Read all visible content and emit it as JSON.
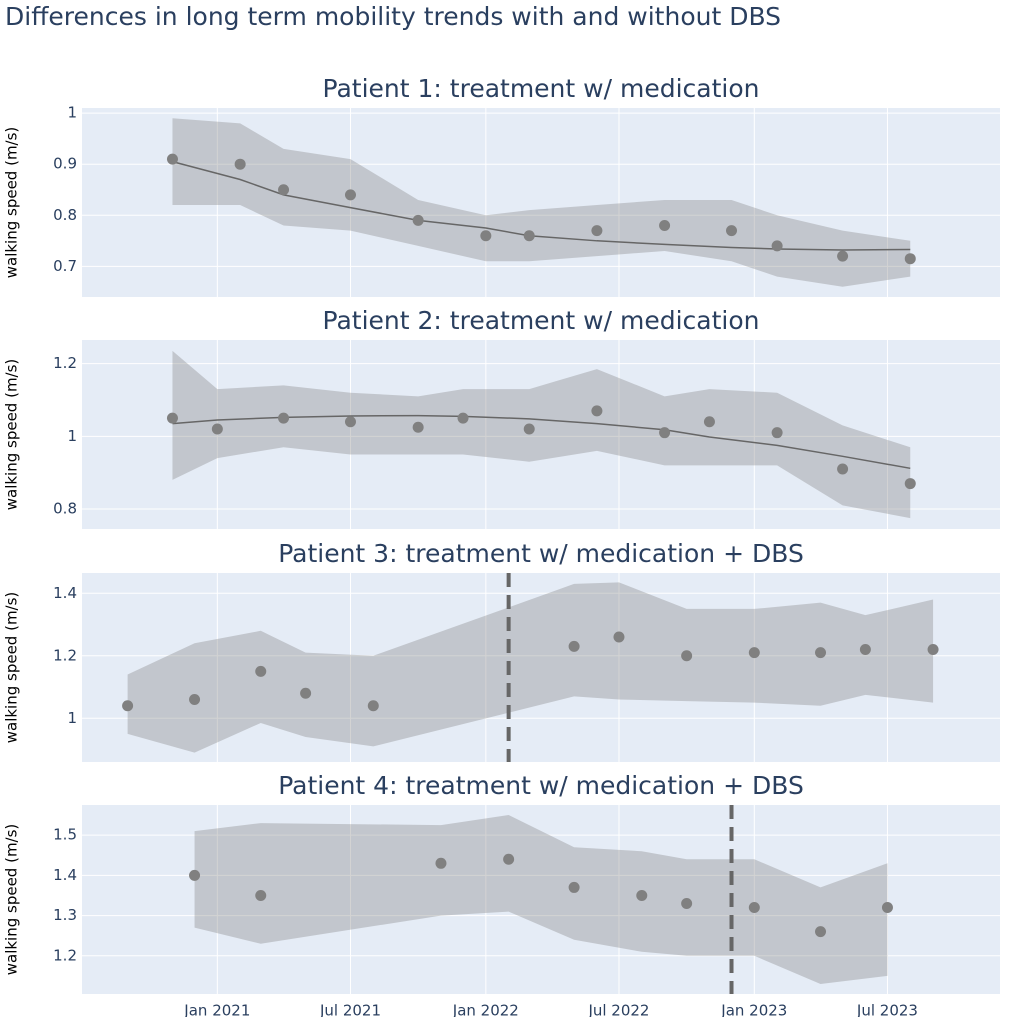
{
  "title": "Differences in long term mobility trends with and without DBS",
  "chart_data": [
    {
      "type": "scatter",
      "title": "Patient 1: treatment w/ medication",
      "ylabel": "walking speed (m/s)",
      "x": [
        "2020-11",
        "2021-02",
        "2021-04",
        "2021-07",
        "2021-10",
        "2022-01",
        "2022-03",
        "2022-06",
        "2022-09",
        "2022-12",
        "2023-02",
        "2023-05",
        "2023-08"
      ],
      "values": [
        0.91,
        0.9,
        0.85,
        0.84,
        0.79,
        0.76,
        0.76,
        0.77,
        0.78,
        0.77,
        0.74,
        0.72,
        0.715
      ],
      "upper": [
        0.99,
        0.98,
        0.93,
        0.91,
        0.83,
        0.8,
        0.81,
        0.82,
        0.83,
        0.83,
        0.8,
        0.77,
        0.75
      ],
      "lower": [
        0.82,
        0.82,
        0.78,
        0.77,
        0.74,
        0.71,
        0.71,
        0.72,
        0.73,
        0.71,
        0.68,
        0.66,
        0.68
      ],
      "trend": [
        0.905,
        0.87,
        0.84,
        0.815,
        0.79,
        0.775,
        0.76,
        0.75,
        0.743,
        0.737,
        0.734,
        0.732,
        0.733
      ],
      "color": "#808080",
      "xlim": [
        "2020-07",
        "2023-12"
      ],
      "xticks": [
        {
          "value": "2021-01",
          "label": "Jan 2021"
        },
        {
          "value": "2021-07",
          "label": "Jul 2021"
        },
        {
          "value": "2022-01",
          "label": "Jan 2022"
        },
        {
          "value": "2022-07",
          "label": "Jul 2022"
        },
        {
          "value": "2023-01",
          "label": "Jan 2023"
        },
        {
          "value": "2023-07",
          "label": "Jul 2023"
        }
      ],
      "ylim": [
        0.64,
        1.01
      ],
      "yticks": [
        0.7,
        0.8,
        0.9,
        1
      ]
    },
    {
      "type": "scatter",
      "title": "Patient 2: treatment w/ medication",
      "ylabel": "walking speed (m/s)",
      "x": [
        "2020-11",
        "2021-01",
        "2021-04",
        "2021-07",
        "2021-10",
        "2021-12",
        "2022-03",
        "2022-06",
        "2022-09",
        "2022-11",
        "2023-02",
        "2023-05",
        "2023-08"
      ],
      "values": [
        1.05,
        1.02,
        1.05,
        1.04,
        1.025,
        1.05,
        1.02,
        1.07,
        1.01,
        1.04,
        1.01,
        0.91,
        0.87
      ],
      "upper": [
        1.235,
        1.13,
        1.14,
        1.12,
        1.11,
        1.13,
        1.13,
        1.185,
        1.11,
        1.13,
        1.12,
        1.03,
        0.97
      ],
      "lower": [
        0.88,
        0.94,
        0.97,
        0.95,
        0.95,
        0.95,
        0.93,
        0.96,
        0.92,
        0.92,
        0.92,
        0.81,
        0.775
      ],
      "trend": [
        1.035,
        1.045,
        1.052,
        1.056,
        1.057,
        1.055,
        1.048,
        1.035,
        1.018,
        0.998,
        0.975,
        0.945,
        0.912
      ],
      "color": "#808080",
      "xlim": [
        "2020-07",
        "2023-12"
      ],
      "xticks": [
        {
          "value": "2021-01",
          "label": "Jan 2021"
        },
        {
          "value": "2021-07",
          "label": "Jul 2021"
        },
        {
          "value": "2022-01",
          "label": "Jan 2022"
        },
        {
          "value": "2022-07",
          "label": "Jul 2022"
        },
        {
          "value": "2023-01",
          "label": "Jan 2023"
        },
        {
          "value": "2023-07",
          "label": "Jul 2023"
        }
      ],
      "ylim": [
        0.745,
        1.265
      ],
      "yticks": [
        0.8,
        1,
        1.2
      ]
    },
    {
      "type": "scatter",
      "title": "Patient 3: treatment w/ medication + DBS",
      "ylabel": "walking speed (m/s)",
      "x": [
        "2020-09",
        "2020-12",
        "2021-03",
        "2021-05",
        "2021-08",
        "2022-05",
        "2022-07",
        "2022-10",
        "2023-01",
        "2023-04",
        "2023-06",
        "2023-09"
      ],
      "values": [
        1.04,
        1.06,
        1.15,
        1.08,
        1.04,
        1.23,
        1.26,
        1.2,
        1.21,
        1.21,
        1.22,
        1.22
      ],
      "upper": [
        1.14,
        1.24,
        1.28,
        1.21,
        1.2,
        1.43,
        1.435,
        1.35,
        1.35,
        1.37,
        1.33,
        1.38
      ],
      "lower": [
        0.95,
        0.89,
        0.985,
        0.94,
        0.91,
        1.07,
        1.06,
        1.055,
        1.05,
        1.04,
        1.075,
        1.05
      ],
      "dbs": "2022-02",
      "color": "#808080",
      "xlim": [
        "2020-07",
        "2023-12"
      ],
      "xticks": [
        {
          "value": "2021-01",
          "label": "Jan 2021"
        },
        {
          "value": "2021-07",
          "label": "Jul 2021"
        },
        {
          "value": "2022-01",
          "label": "Jan 2022"
        },
        {
          "value": "2022-07",
          "label": "Jul 2022"
        },
        {
          "value": "2023-01",
          "label": "Jan 2023"
        },
        {
          "value": "2023-07",
          "label": "Jul 2023"
        }
      ],
      "ylim": [
        0.86,
        1.465
      ],
      "yticks": [
        1,
        1.2,
        1.4
      ]
    },
    {
      "type": "scatter",
      "title": "Patient 4: treatment w/ medication + DBS",
      "ylabel": "walking speed (m/s)",
      "x": [
        "2020-12",
        "2021-03",
        "2021-11",
        "2022-02",
        "2022-05",
        "2022-08",
        "2022-10",
        "2023-01",
        "2023-04",
        "2023-07"
      ],
      "values": [
        1.4,
        1.35,
        1.43,
        1.44,
        1.37,
        1.35,
        1.33,
        1.32,
        1.26,
        1.32
      ],
      "upper": [
        1.51,
        1.53,
        1.525,
        1.55,
        1.47,
        1.46,
        1.44,
        1.44,
        1.37,
        1.43
      ],
      "lower": [
        1.27,
        1.23,
        1.3,
        1.31,
        1.24,
        1.21,
        1.2,
        1.2,
        1.13,
        1.15
      ],
      "dbs": "2022-12",
      "color": "#808080",
      "xlim": [
        "2020-07",
        "2023-12"
      ],
      "xticks": [
        {
          "value": "2021-01",
          "label": "Jan 2021"
        },
        {
          "value": "2021-07",
          "label": "Jul 2021"
        },
        {
          "value": "2022-01",
          "label": "Jan 2022"
        },
        {
          "value": "2022-07",
          "label": "Jul 2022"
        },
        {
          "value": "2023-01",
          "label": "Jan 2023"
        },
        {
          "value": "2023-07",
          "label": "Jul 2023"
        }
      ],
      "ylim": [
        1.105,
        1.575
      ],
      "yticks": [
        1.2,
        1.3,
        1.4,
        1.5
      ]
    }
  ]
}
